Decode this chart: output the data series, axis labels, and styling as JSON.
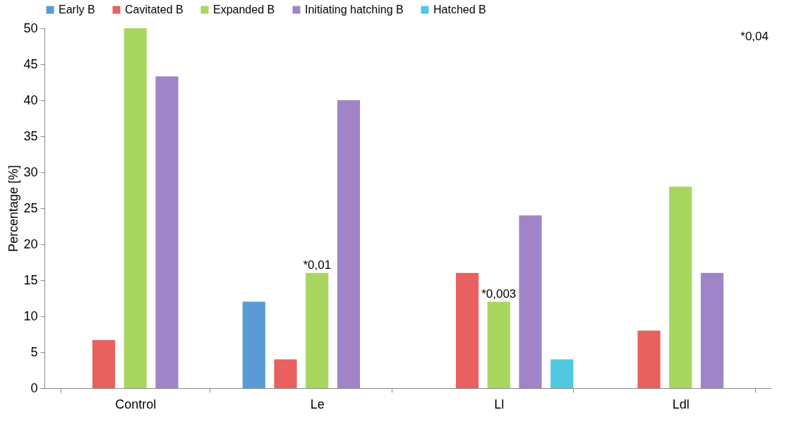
{
  "chart_data": {
    "type": "bar",
    "ylabel": "Percentage [%]",
    "categories": [
      "Control",
      "Le",
      "Ll",
      "Ldl"
    ],
    "series": [
      {
        "name": "Early B",
        "color": "#5b9bd5",
        "values": [
          null,
          12,
          null,
          null
        ]
      },
      {
        "name": "Cavitated B",
        "color": "#e8605f",
        "values": [
          6.7,
          4,
          16,
          8
        ]
      },
      {
        "name": "Expanded B",
        "color": "#a9d65e",
        "values": [
          50,
          16,
          12,
          28
        ]
      },
      {
        "name": "Initiating hatching B",
        "color": "#a084c8",
        "values": [
          43.3,
          40,
          24,
          16
        ]
      },
      {
        "name": "Hatched B",
        "color": "#4fc8e0",
        "values": [
          null,
          null,
          4,
          null
        ]
      }
    ],
    "ylim": [
      0,
      50
    ],
    "yticks": [
      0,
      5,
      10,
      15,
      20,
      25,
      30,
      35,
      40,
      45,
      50
    ],
    "annotations": [
      {
        "text": "*0,01",
        "x": "Le",
        "y": 16
      },
      {
        "text": "*0,003",
        "x": "Ll",
        "y": 12
      },
      "*0,04"
    ],
    "legend": "top",
    "grid": false
  }
}
